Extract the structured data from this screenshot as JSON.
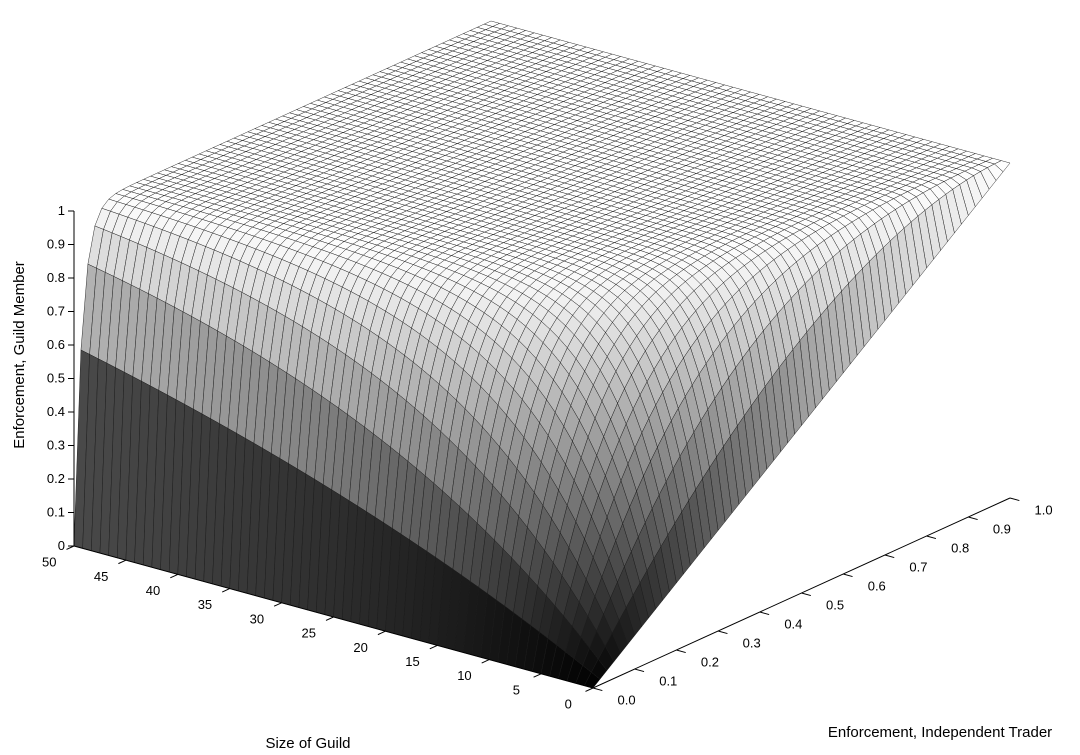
{
  "chart_data": {
    "type": "surface",
    "title": "",
    "xlabel": "Size of Guild",
    "ylabel": "Enforcement, Independent Trader",
    "zlabel": "Enforcement, Guild Member",
    "x_ticks": [
      "0",
      "5",
      "10",
      "15",
      "20",
      "25",
      "30",
      "35",
      "40",
      "45",
      "50"
    ],
    "y_ticks": [
      "0.0",
      "0.1",
      "0.2",
      "0.3",
      "0.4",
      "0.5",
      "0.6",
      "0.7",
      "0.8",
      "0.9",
      "1.0"
    ],
    "z_ticks": [
      "0",
      "0.1",
      "0.2",
      "0.3",
      "0.4",
      "0.5",
      "0.6",
      "0.7",
      "0.8",
      "0.9",
      "1"
    ],
    "xlim": [
      0,
      50
    ],
    "ylim": [
      0,
      1
    ],
    "zlim": [
      0,
      1
    ],
    "grid_points": 61,
    "surface": {
      "corner_values": {
        "x0_y0": 0,
        "x0_y1": 1,
        "x50_y0": 1,
        "x50_y1": 1
      },
      "edge_y0": {
        "x": [
          0,
          5,
          10,
          15,
          20,
          25,
          30,
          35,
          40,
          45,
          50
        ],
        "z": [
          0,
          0.41,
          0.65,
          0.79,
          0.88,
          0.93,
          0.96,
          0.98,
          0.99,
          0.995,
          1
        ]
      },
      "edge_x0": {
        "y": [
          0,
          0.1,
          0.2,
          0.3,
          0.4,
          0.5,
          0.6,
          0.7,
          0.8,
          0.9,
          1
        ],
        "z": [
          0,
          0.1,
          0.2,
          0.3,
          0.4,
          0.5,
          0.6,
          0.7,
          0.8,
          0.9,
          1
        ]
      }
    },
    "colormap": "gray",
    "grid": false,
    "legend": "none"
  }
}
